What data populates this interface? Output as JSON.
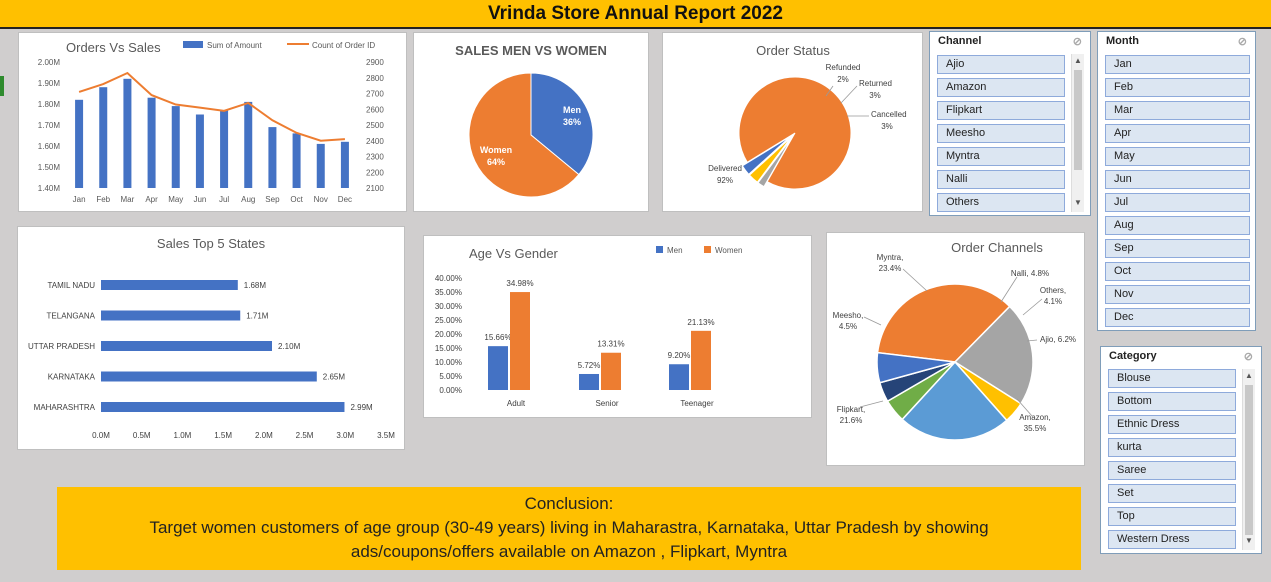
{
  "report_title": "Vrinda Store Annual Report 2022",
  "colors": {
    "blue": "#4472c4",
    "orange": "#ed7d31",
    "gray": "#a5a5a5",
    "yellow": "#ffc000",
    "lightblue": "#5b9bd5",
    "green": "#70ad47",
    "navy": "#264478"
  },
  "chart_data": [
    {
      "type": "bar",
      "title": "Orders Vs Sales",
      "categories": [
        "Jan",
        "Feb",
        "Mar",
        "Apr",
        "May",
        "Jun",
        "Jul",
        "Aug",
        "Sep",
        "Oct",
        "Nov",
        "Dec"
      ],
      "series": [
        {
          "name": "Sum of Amount",
          "type": "bar",
          "axis": "left",
          "values": [
            1.82,
            1.88,
            1.92,
            1.83,
            1.79,
            1.75,
            1.77,
            1.81,
            1.69,
            1.66,
            1.61,
            1.62
          ]
        },
        {
          "name": "Count of Order ID",
          "type": "line",
          "axis": "right",
          "values": [
            2710,
            2760,
            2830,
            2690,
            2630,
            2610,
            2590,
            2640,
            2530,
            2450,
            2400,
            2410
          ]
        }
      ],
      "y_left_ticks": [
        "2.00M",
        "1.90M",
        "1.80M",
        "1.70M",
        "1.60M",
        "1.50M",
        "1.40M"
      ],
      "y_right_ticks": [
        "2900",
        "2800",
        "2700",
        "2600",
        "2500",
        "2400",
        "2300",
        "2200",
        "2100"
      ],
      "ylim_left": [
        1.4,
        2.0
      ],
      "ylim_right": [
        2100,
        2900
      ],
      "legend": "top"
    },
    {
      "type": "pie",
      "title": "SALES MEN VS WOMEN",
      "slices": [
        {
          "label": "Men",
          "value": 36,
          "pct": "36%"
        },
        {
          "label": "Women",
          "value": 64,
          "pct": "64%"
        }
      ]
    },
    {
      "type": "pie",
      "title": "Order Status",
      "slices": [
        {
          "label": "Delivered",
          "value": 92,
          "pct": "92%"
        },
        {
          "label": "Refunded",
          "value": 2,
          "pct": "2%"
        },
        {
          "label": "Returned",
          "value": 3,
          "pct": "3%"
        },
        {
          "label": "Cancelled",
          "value": 3,
          "pct": "3%"
        }
      ]
    },
    {
      "type": "bar",
      "orientation": "horizontal",
      "title": "Sales Top 5 States",
      "categories": [
        "TAMIL NADU",
        "TELANGANA",
        "UTTAR PRADESH",
        "KARNATAKA",
        "MAHARASHTRA"
      ],
      "values": [
        1.68,
        1.71,
        2.1,
        2.65,
        2.99
      ],
      "value_labels": [
        "1.68M",
        "1.71M",
        "2.10M",
        "2.65M",
        "2.99M"
      ],
      "x_ticks": [
        "0.0M",
        "0.5M",
        "1.0M",
        "1.5M",
        "2.0M",
        "2.5M",
        "3.0M",
        "3.5M"
      ],
      "xlim": [
        0,
        3.5
      ]
    },
    {
      "type": "bar",
      "title": "Age Vs Gender",
      "categories": [
        "Adult",
        "Senior",
        "Teenager"
      ],
      "series": [
        {
          "name": "Men",
          "values": [
            15.66,
            5.72,
            9.2
          ],
          "labels": [
            "15.66%",
            "5.72%",
            "9.20%"
          ]
        },
        {
          "name": "Women",
          "values": [
            34.98,
            13.31,
            21.13
          ],
          "labels": [
            "34.98%",
            "13.31%",
            "21.13%"
          ]
        }
      ],
      "y_ticks": [
        "40.00%",
        "35.00%",
        "30.00%",
        "25.00%",
        "20.00%",
        "15.00%",
        "10.00%",
        "5.00%",
        "0.00%"
      ],
      "ylim": [
        0,
        40
      ],
      "legend": "top-right"
    },
    {
      "type": "pie",
      "title": "Order Channels",
      "slices": [
        {
          "label": "Amazon",
          "value": 35.5,
          "display": "Amazon,",
          "pct": "35.5%"
        },
        {
          "label": "Flipkart",
          "value": 21.6,
          "display": "Flipkart,",
          "pct": "21.6%"
        },
        {
          "label": "Meesho",
          "value": 4.5,
          "display": "Meesho,",
          "pct": "4.5%"
        },
        {
          "label": "Myntra",
          "value": 23.4,
          "display": "Myntra,",
          "pct": "23.4%"
        },
        {
          "label": "Nalli",
          "value": 4.8,
          "display": "Nalli, 4.8%",
          "pct": ""
        },
        {
          "label": "Others",
          "value": 4.1,
          "display": "Others,",
          "pct": "4.1%"
        },
        {
          "label": "Ajio",
          "value": 6.2,
          "display": "Ajio, 6.2%",
          "pct": ""
        }
      ]
    }
  ],
  "slicers": {
    "channel": {
      "title": "Channel",
      "items": [
        "Ajio",
        "Amazon",
        "Flipkart",
        "Meesho",
        "Myntra",
        "Nalli",
        "Others"
      ]
    },
    "month": {
      "title": "Month",
      "items": [
        "Jan",
        "Feb",
        "Mar",
        "Apr",
        "May",
        "Jun",
        "Jul",
        "Aug",
        "Sep",
        "Oct",
        "Nov",
        "Dec"
      ]
    },
    "category": {
      "title": "Category",
      "items": [
        "Blouse",
        "Bottom",
        "Ethnic Dress",
        "kurta",
        "Saree",
        "Set",
        "Top",
        "Western Dress"
      ]
    }
  },
  "conclusion": {
    "heading": "Conclusion:",
    "line1": "Target women customers of age group (30-49 years) living in Maharastra, Karnataka, Uttar Pradesh by showing",
    "line2": "ads/coupons/offers available on Amazon , Flipkart, Myntra"
  }
}
